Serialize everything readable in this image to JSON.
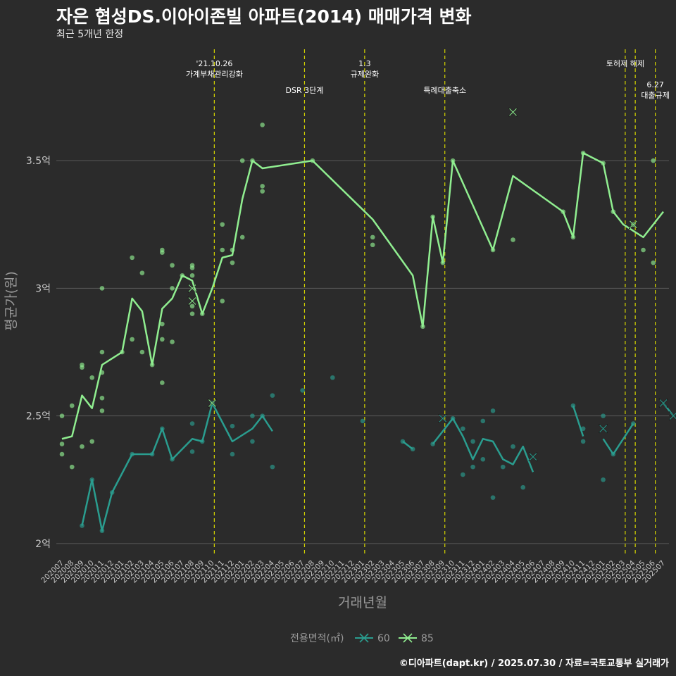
{
  "title": "자은 협성DS.이아이존빌 아파트(2014) 매매가격 변화",
  "subtitle": "최근 5개년 한정",
  "caption": "©디아파트(dapt.kr) / 2025.07.30 / 자료=국토교통부 실거래가",
  "colors": {
    "background": "#2b2b2b",
    "grid": "#5a5a5a",
    "series_60": "#2a9d8f",
    "series_85": "#90ee90",
    "events": "#d4d400",
    "axis_text": "#c8c8c8"
  },
  "chart_data": {
    "type": "line",
    "xlabel": "거래년월",
    "ylabel": "평균가(원)",
    "ylim": [
      1.95,
      3.95
    ],
    "yticks": [
      {
        "value": 2.0,
        "label": "2억"
      },
      {
        "value": 2.5,
        "label": "2.5억"
      },
      {
        "value": 3.0,
        "label": "3억"
      },
      {
        "value": 3.5,
        "label": "3.5억"
      }
    ],
    "categories": [
      "202007",
      "202008",
      "202009",
      "202010",
      "202011",
      "202012",
      "202101",
      "202102",
      "202103",
      "202104",
      "202105",
      "202106",
      "202107",
      "202108",
      "202109",
      "202110",
      "202111",
      "202112",
      "202201",
      "202202",
      "202203",
      "202204",
      "202205",
      "202206",
      "202207",
      "202208",
      "202209",
      "202210",
      "202211",
      "202212",
      "202301",
      "202302",
      "202303",
      "202304",
      "202305",
      "202306",
      "202307",
      "202308",
      "202309",
      "202310",
      "202311",
      "202312",
      "202401",
      "202402",
      "202403",
      "202404",
      "202405",
      "202406",
      "202407",
      "202408",
      "202409",
      "202410",
      "202411",
      "202412",
      "202501",
      "202502",
      "202503",
      "202504",
      "202505",
      "202506",
      "202507"
    ],
    "legend": {
      "title": "전용면적(㎡)",
      "position": "bottom",
      "items": [
        "60",
        "85"
      ]
    },
    "events": [
      {
        "x": 15.2,
        "lines": [
          "'21.10.26",
          "가계부채관리강화"
        ],
        "level": 0
      },
      {
        "x": 24.2,
        "lines": [
          "DSR 3단계"
        ],
        "level": 1
      },
      {
        "x": 30.2,
        "lines": [
          "1.3",
          "규제완화"
        ],
        "level": 0
      },
      {
        "x": 38.2,
        "lines": [
          "특례대출축소"
        ],
        "level": 1
      },
      {
        "x": 56.2,
        "lines": [
          "토허제 해제"
        ],
        "level": 0
      },
      {
        "x": 57.2,
        "lines": [],
        "level": 0
      },
      {
        "x": 59.2,
        "lines": [
          "6.27",
          "대출규제"
        ],
        "level": 2
      }
    ],
    "series": [
      {
        "name": "60",
        "color_key": "series_60",
        "line": [
          [
            2,
            2.07
          ],
          [
            3,
            2.25
          ],
          [
            4,
            2.05
          ],
          [
            5,
            2.2
          ],
          [
            7,
            2.35
          ],
          [
            9,
            2.35
          ],
          [
            10,
            2.45
          ],
          [
            11,
            2.33
          ],
          [
            13,
            2.41
          ],
          [
            14,
            2.4
          ],
          [
            15,
            2.55
          ],
          [
            17,
            2.4
          ],
          [
            19,
            2.45
          ],
          [
            20,
            2.5
          ],
          [
            21,
            2.44
          ],
          null,
          [
            34,
            2.4
          ],
          [
            35,
            2.37
          ],
          null,
          [
            37,
            2.39
          ],
          [
            39,
            2.49
          ],
          [
            40,
            2.42
          ],
          [
            41,
            2.33
          ],
          [
            42,
            2.41
          ],
          [
            43,
            2.4
          ],
          [
            44,
            2.33
          ],
          [
            45,
            2.31
          ],
          [
            46,
            2.38
          ],
          [
            47,
            2.28
          ],
          null,
          [
            51,
            2.54
          ],
          [
            52,
            2.42
          ],
          null,
          [
            54,
            2.41
          ],
          [
            55,
            2.35
          ],
          [
            56,
            2.41
          ],
          [
            57,
            2.47
          ],
          null,
          [
            60,
            2.55
          ],
          [
            61,
            2.5
          ]
        ],
        "points": [
          [
            2,
            2.07
          ],
          [
            3,
            2.25
          ],
          [
            4,
            2.05
          ],
          [
            5,
            2.2
          ],
          [
            7,
            2.35
          ],
          [
            9,
            2.35
          ],
          [
            10,
            2.45
          ],
          [
            11,
            2.33
          ],
          [
            13,
            2.36
          ],
          [
            13,
            2.47
          ],
          [
            14,
            2.4
          ],
          [
            15,
            2.55
          ],
          [
            17,
            2.35
          ],
          [
            17,
            2.46
          ],
          [
            19,
            2.4
          ],
          [
            19,
            2.5
          ],
          [
            20,
            2.5
          ],
          [
            21,
            2.3
          ],
          [
            21,
            2.58
          ],
          [
            24,
            2.6
          ],
          [
            27,
            2.65
          ],
          [
            30,
            2.48
          ],
          [
            34,
            2.4
          ],
          [
            35,
            2.37
          ],
          [
            37,
            2.39
          ],
          [
            39,
            2.49
          ],
          [
            40,
            2.27
          ],
          [
            40,
            2.45
          ],
          [
            41,
            2.3
          ],
          [
            41,
            2.4
          ],
          [
            42,
            2.33
          ],
          [
            42,
            2.48
          ],
          [
            43,
            2.18
          ],
          [
            43,
            2.52
          ],
          [
            44,
            2.3
          ],
          [
            45,
            2.38
          ],
          [
            46,
            2.22
          ],
          [
            51,
            2.54
          ],
          [
            52,
            2.4
          ],
          [
            52,
            2.45
          ],
          [
            54,
            2.25
          ],
          [
            54,
            2.5
          ],
          [
            55,
            2.35
          ],
          [
            57,
            2.47
          ]
        ],
        "crosses": [
          [
            15,
            2.55
          ],
          [
            38,
            2.49
          ],
          [
            47,
            2.34
          ],
          [
            54,
            2.45
          ],
          [
            60,
            2.55
          ],
          [
            61,
            2.5
          ]
        ]
      },
      {
        "name": "85",
        "color_key": "series_85",
        "line": [
          [
            0,
            2.41
          ],
          [
            1,
            2.42
          ],
          [
            2,
            2.58
          ],
          [
            3,
            2.53
          ],
          [
            4,
            2.7
          ],
          [
            6,
            2.75
          ],
          [
            7,
            2.96
          ],
          [
            8,
            2.91
          ],
          [
            9,
            2.7
          ],
          [
            10,
            2.92
          ],
          [
            11,
            2.96
          ],
          [
            12,
            3.05
          ],
          [
            13,
            3.03
          ],
          [
            14,
            2.9
          ],
          [
            15,
            3.0
          ],
          [
            16,
            3.12
          ],
          [
            17,
            3.13
          ],
          [
            18,
            3.35
          ],
          [
            19,
            3.5
          ],
          [
            20,
            3.47
          ],
          [
            25,
            3.5
          ],
          [
            31,
            3.27
          ],
          [
            35,
            3.05
          ],
          [
            36,
            2.85
          ],
          [
            37,
            3.28
          ],
          [
            38,
            3.1
          ],
          [
            39,
            3.5
          ],
          [
            43,
            3.15
          ],
          [
            45,
            3.44
          ],
          [
            50,
            3.3
          ],
          [
            51,
            3.2
          ],
          [
            52,
            3.53
          ],
          [
            54,
            3.49
          ],
          [
            55,
            3.3
          ],
          [
            56,
            3.25
          ],
          [
            58,
            3.2
          ],
          [
            60,
            3.3
          ]
        ],
        "points": [
          [
            0,
            2.5
          ],
          [
            0,
            2.39
          ],
          [
            0,
            2.35
          ],
          [
            1,
            2.3
          ],
          [
            1,
            2.54
          ],
          [
            2,
            2.38
          ],
          [
            2,
            2.69
          ],
          [
            2,
            2.7
          ],
          [
            3,
            2.4
          ],
          [
            3,
            2.65
          ],
          [
            4,
            2.52
          ],
          [
            4,
            2.57
          ],
          [
            4,
            2.67
          ],
          [
            4,
            2.75
          ],
          [
            4,
            3.0
          ],
          [
            6,
            2.75
          ],
          [
            7,
            2.8
          ],
          [
            7,
            3.12
          ],
          [
            8,
            2.75
          ],
          [
            8,
            3.06
          ],
          [
            9,
            2.7
          ],
          [
            10,
            2.63
          ],
          [
            10,
            2.8
          ],
          [
            10,
            2.86
          ],
          [
            10,
            3.14
          ],
          [
            10,
            3.15
          ],
          [
            11,
            2.79
          ],
          [
            11,
            3.0
          ],
          [
            11,
            3.09
          ],
          [
            12,
            3.05
          ],
          [
            13,
            2.9
          ],
          [
            13,
            2.93
          ],
          [
            13,
            3.05
          ],
          [
            13,
            3.08
          ],
          [
            13,
            3.09
          ],
          [
            14,
            2.9
          ],
          [
            16,
            2.95
          ],
          [
            16,
            3.15
          ],
          [
            16,
            3.25
          ],
          [
            17,
            3.1
          ],
          [
            17,
            3.15
          ],
          [
            18,
            3.2
          ],
          [
            18,
            3.5
          ],
          [
            19,
            3.5
          ],
          [
            20,
            3.38
          ],
          [
            20,
            3.4
          ],
          [
            20,
            3.64
          ],
          [
            25,
            3.5
          ],
          [
            31,
            3.17
          ],
          [
            31,
            3.2
          ],
          [
            36,
            2.85
          ],
          [
            37,
            3.28
          ],
          [
            38,
            3.1
          ],
          [
            39,
            3.5
          ],
          [
            43,
            3.15
          ],
          [
            45,
            3.19
          ],
          [
            50,
            3.3
          ],
          [
            51,
            3.2
          ],
          [
            52,
            3.53
          ],
          [
            54,
            3.49
          ],
          [
            55,
            3.3
          ],
          [
            57,
            3.25
          ],
          [
            58,
            3.15
          ],
          [
            59,
            3.1
          ],
          [
            59,
            3.5
          ]
        ],
        "crosses": [
          [
            13,
            2.95
          ],
          [
            13,
            3.0
          ],
          [
            15,
            2.55
          ],
          [
            45,
            3.69
          ],
          [
            57,
            3.25
          ]
        ]
      }
    ]
  }
}
